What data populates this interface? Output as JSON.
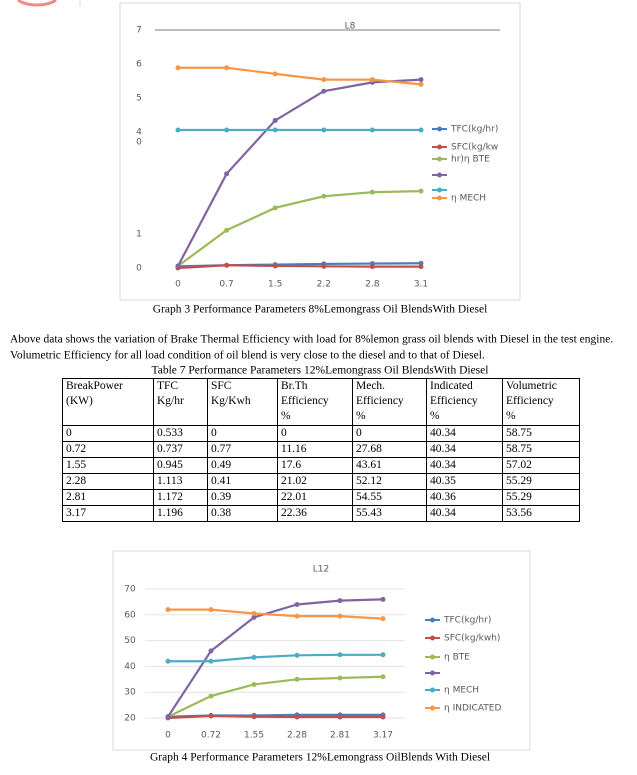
{
  "chart_data": [
    {
      "type": "line",
      "title": "L8",
      "categories": [
        "0",
        "0.7",
        "1.5",
        "2.2",
        "2.8",
        "3.1"
      ],
      "ylim": [
        0,
        7
      ],
      "yticks": [
        0,
        1,
        4,
        5,
        6,
        7
      ],
      "annotations": [
        "0"
      ],
      "grid": false,
      "series": [
        {
          "name": "TFC(kg/hr)",
          "color": "#4a7ebb",
          "values": [
            0.05,
            0.08,
            0.1,
            0.12,
            0.13,
            0.14
          ]
        },
        {
          "name": "SFC(kg/kw",
          "color": "#c0504d",
          "values": [
            0,
            0.08,
            0.06,
            0.05,
            0.04,
            0.04
          ]
        },
        {
          "name": "hr)η BTE",
          "color": "#9bbb59",
          "values": [
            0.06,
            1.11,
            1.77,
            2.11,
            2.23,
            2.26
          ]
        },
        {
          "name": null,
          "color": "#8064a2",
          "values": [
            0.06,
            2.77,
            4.34,
            5.2,
            5.46,
            5.54
          ]
        },
        {
          "name": null,
          "color": "#4bacc6",
          "values": [
            4.06,
            4.06,
            4.06,
            4.06,
            4.06,
            4.06
          ]
        },
        {
          "name": "η MECH",
          "color": "#f79646",
          "values": [
            5.89,
            5.89,
            5.71,
            5.54,
            5.54,
            5.4
          ]
        }
      ]
    },
    {
      "type": "line",
      "title": "L12",
      "categories": [
        "0",
        "0.72",
        "1.55",
        "2.28",
        "2.81",
        "3.17"
      ],
      "ylim": [
        20,
        70
      ],
      "yticks": [
        20,
        30,
        40,
        50,
        60,
        70
      ],
      "grid": true,
      "series": [
        {
          "name": "TFC(kg/hr)",
          "color": "#4a7ebb",
          "values": [
            20.5,
            21,
            21,
            21.2,
            21.2,
            21.2
          ]
        },
        {
          "name": "SFC(kg/kwh)",
          "color": "#c0504d",
          "values": [
            20,
            20.8,
            20.5,
            20.4,
            20.4,
            20.4
          ]
        },
        {
          "name": "η BTE",
          "color": "#9bbb59",
          "values": [
            20.5,
            28.5,
            33,
            35,
            35.5,
            36
          ]
        },
        {
          "name": null,
          "color": "#8064a2",
          "values": [
            20.5,
            46,
            59,
            64,
            65.5,
            66
          ]
        },
        {
          "name": "η MECH",
          "color": "#4bacc6",
          "values": [
            42,
            42,
            43.5,
            44.3,
            44.5,
            44.5
          ]
        },
        {
          "name": "η INDICATED",
          "color": "#f79646",
          "values": [
            62,
            62,
            60.5,
            59.5,
            59.5,
            58.5
          ]
        }
      ]
    }
  ],
  "graph3_caption": "Graph 3 Performance Parameters 8%Lemongrass Oil BlendsWith Diesel",
  "paragraph": [
    "Above data shows the variation of Brake Thermal Efficiency with load for 8%lemon grass oil blends with Diesel in the test engine.",
    "Volumetric Efficiency for all load condition of oil blend is very close to the diesel and to that of Diesel."
  ],
  "table_caption": "Table 7 Performance Parameters 12%Lemongrass Oil BlendsWith Diesel",
  "table": {
    "header": [
      [
        "BreakPower",
        "(KW)"
      ],
      [
        "TFC",
        "Kg/hr"
      ],
      [
        "SFC",
        "Kg/Kwh"
      ],
      [
        "Br.Th",
        "Efficiency",
        "%"
      ],
      [
        "Mech.",
        "Efficiency",
        "%"
      ],
      [
        "Indicated",
        "Efficiency",
        "%"
      ],
      [
        "Volumetric",
        "Efficiency",
        "%"
      ]
    ],
    "rows": [
      [
        "0",
        "0.533",
        "0",
        "0",
        "0",
        "40.34",
        "58.75"
      ],
      [
        "0.72",
        "0.737",
        "0.77",
        "11.16",
        "27.68",
        "40.34",
        "58.75"
      ],
      [
        "1.55",
        "0.945",
        "0.49",
        "17.6",
        "43.61",
        "40.34",
        "57.02"
      ],
      [
        "2.28",
        "1.113",
        "0.41",
        "21.02",
        "52.12",
        "40.35",
        "55.29"
      ],
      [
        "2.81",
        "1.172",
        "0.39",
        "22.01",
        "54.55",
        "40.36",
        "55.29"
      ],
      [
        "3.17",
        "1.196",
        "0.38",
        "22.36",
        "55.43",
        "40.34",
        "53.56"
      ]
    ]
  },
  "graph4_caption": "Graph 4 Performance Parameters 12%Lemongrass OilBlends With Diesel"
}
